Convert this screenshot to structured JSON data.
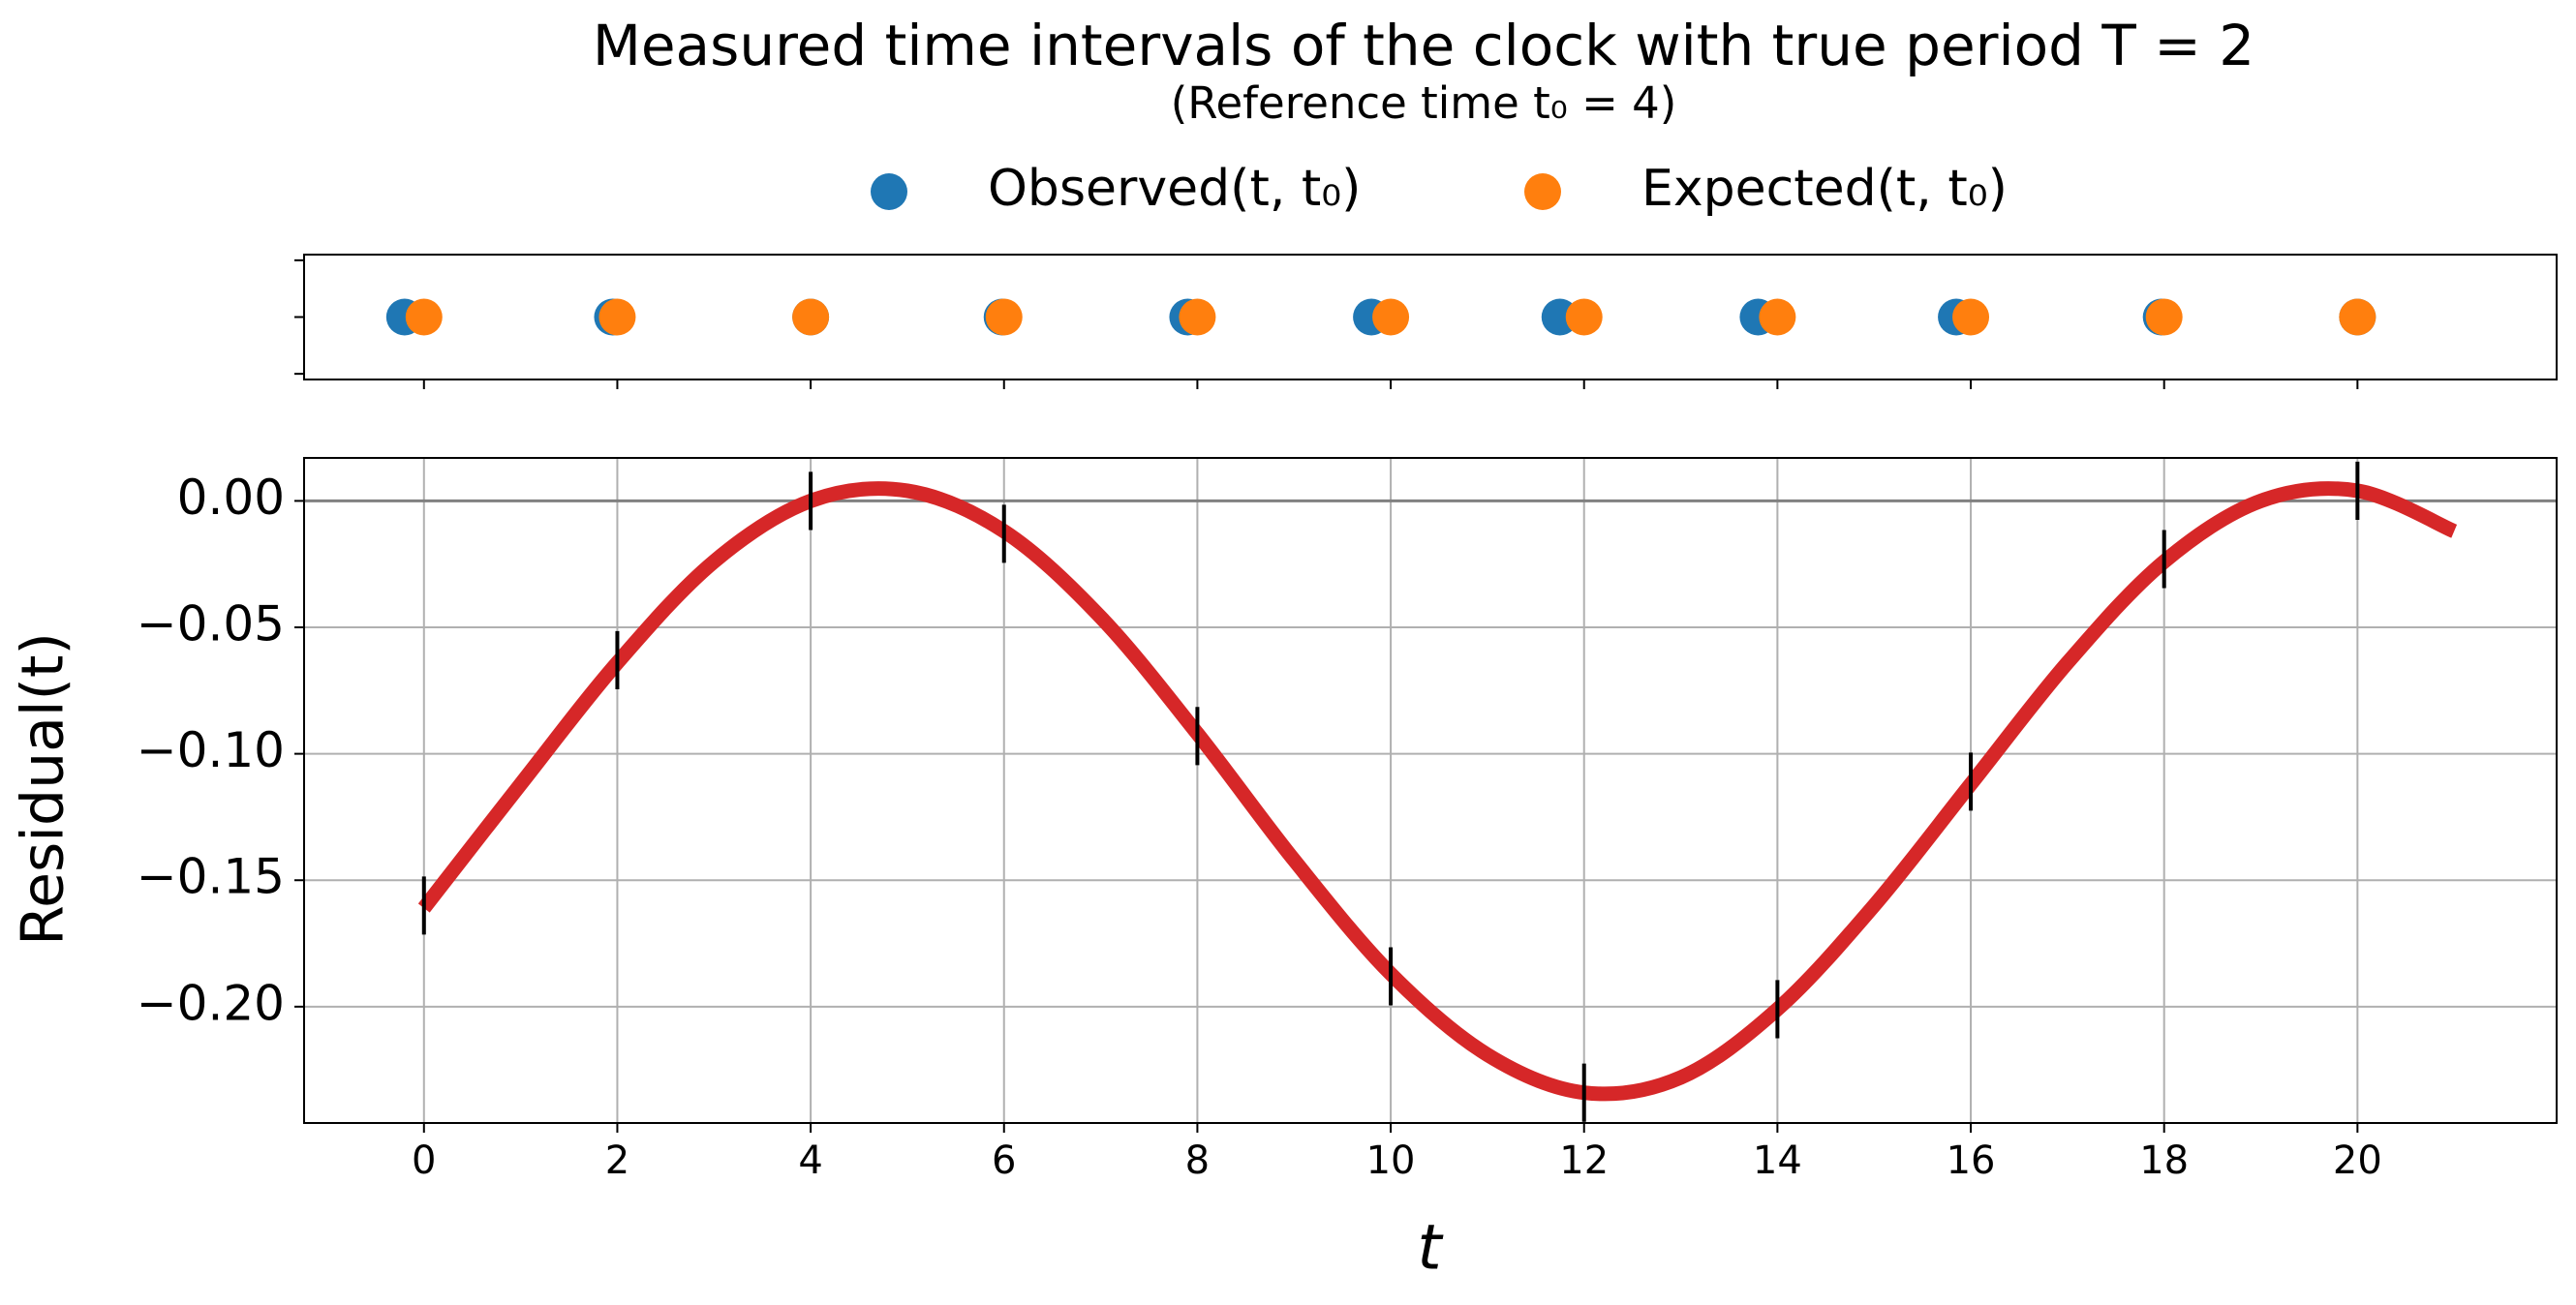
{
  "chart_data": [
    {
      "type": "scatter",
      "title": "Measured time intervals of the clock with true period T = 2",
      "subtitle": "(Reference time t₀ = 4)",
      "legend": "top",
      "ylim": [
        -0.055,
        0.055
      ],
      "yticks": [
        -0.05,
        0,
        0.05
      ],
      "series": [
        {
          "name": "Observed(t, t₀)",
          "color": "#1f77b4",
          "x": [
            -0.2,
            1.95,
            4.0,
            5.98,
            7.9,
            9.8,
            11.75,
            13.8,
            15.85,
            17.97,
            20.0
          ],
          "values": [
            0,
            0,
            0,
            0,
            0,
            0,
            0,
            0,
            0,
            0,
            0
          ]
        },
        {
          "name": "Expected(t, t₀)",
          "color": "#ff7f0e",
          "x": [
            0,
            2,
            4,
            6,
            8,
            10,
            12,
            14,
            16,
            18,
            20
          ],
          "values": [
            0,
            0,
            0,
            0,
            0,
            0,
            0,
            0,
            0,
            0,
            0
          ]
        }
      ]
    },
    {
      "type": "line",
      "xlabel": "t",
      "ylabel": "Residual(t)",
      "xlim": [
        -1.24,
        22.06
      ],
      "xticks": [
        0,
        2,
        4,
        6,
        8,
        10,
        12,
        14,
        16,
        18,
        20
      ],
      "ylim": [
        -0.246,
        0.017
      ],
      "yticks": [
        {
          "value": -0.2,
          "label": "−0.20"
        },
        {
          "value": -0.15,
          "label": "−0.15"
        },
        {
          "value": -0.1,
          "label": "−0.10"
        },
        {
          "value": -0.05,
          "label": "−0.05"
        },
        {
          "value": 0,
          "label": "0.00"
        }
      ],
      "grid": true,
      "hline": 0,
      "curve": {
        "color": "#d62728",
        "x": [
          0,
          1,
          2,
          3,
          4,
          5,
          6,
          7,
          8,
          9,
          10,
          11,
          12,
          13,
          14,
          15,
          16,
          17,
          18,
          19,
          20,
          21
        ],
        "values": [
          -0.161,
          -0.112,
          -0.064,
          -0.024,
          0.0,
          0.004,
          -0.012,
          -0.046,
          -0.092,
          -0.142,
          -0.187,
          -0.219,
          -0.234,
          -0.228,
          -0.201,
          -0.16,
          -0.112,
          -0.064,
          -0.024,
          0.0,
          0.004,
          -0.012
        ]
      },
      "points": {
        "color": "#000000",
        "x": [
          0,
          2,
          4,
          6,
          8,
          10,
          12,
          14,
          16,
          18,
          20
        ],
        "values": [
          -0.16,
          -0.063,
          0.0,
          -0.013,
          -0.093,
          -0.188,
          -0.234,
          -0.201,
          -0.111,
          -0.023,
          0.004
        ],
        "errors": [
          0.0115,
          0.0115,
          0.0115,
          0.0115,
          0.0115,
          0.0115,
          0.0115,
          0.0115,
          0.0115,
          0.0115,
          0.0115
        ]
      }
    }
  ]
}
